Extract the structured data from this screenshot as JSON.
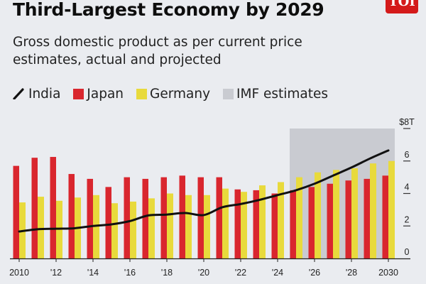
{
  "header": {
    "title": "Third-Largest Economy by 2029",
    "logo_text": "TOI"
  },
  "subtitle_lines": [
    "Gross domestic product as per current price",
    "estimates, actual and projected"
  ],
  "legend": [
    {
      "label": "India",
      "kind": "line",
      "color": "#111111"
    },
    {
      "label": "Japan",
      "kind": "swatch",
      "color": "#d9262e"
    },
    {
      "label": "Germany",
      "kind": "swatch",
      "color": "#e8da3c"
    },
    {
      "label": "IMF estimates",
      "kind": "swatch",
      "color": "#c9cbd1"
    }
  ],
  "chart_data": {
    "type": "bar",
    "title": "Third-Largest Economy by 2029",
    "subtitle": "Gross domestic product as per current price estimates, actual and projected",
    "xlabel": "",
    "ylabel": "",
    "x": [
      2010,
      2011,
      2012,
      2013,
      2014,
      2015,
      2016,
      2017,
      2018,
      2019,
      2020,
      2021,
      2022,
      2023,
      2024,
      2025,
      2026,
      2027,
      2028,
      2029,
      2030
    ],
    "x_tick_labels": [
      {
        "year": 2010,
        "label": "2010"
      },
      {
        "year": 2012,
        "label": "'12"
      },
      {
        "year": 2014,
        "label": "'14"
      },
      {
        "year": 2016,
        "label": "'16"
      },
      {
        "year": 2018,
        "label": "'18"
      },
      {
        "year": 2020,
        "label": "'20"
      },
      {
        "year": 2022,
        "label": "'22"
      },
      {
        "year": 2024,
        "label": "'24"
      },
      {
        "year": 2026,
        "label": "'26"
      },
      {
        "year": 2028,
        "label": "'28"
      },
      {
        "year": 2030,
        "label": "2030"
      }
    ],
    "y_ticks": [
      {
        "value": 0,
        "label": "0"
      },
      {
        "value": 2,
        "label": "2"
      },
      {
        "value": 4,
        "label": "4"
      },
      {
        "value": 6,
        "label": "6"
      },
      {
        "value": 8,
        "label": "$8T"
      }
    ],
    "ylim": [
      0,
      8
    ],
    "y_axis_position": "right",
    "grid": false,
    "legend_position": "top-left",
    "series": [
      {
        "name": "Japan",
        "type": "bar",
        "color": "#d9262e",
        "values": [
          5.7,
          6.2,
          6.25,
          5.2,
          4.9,
          4.4,
          5.0,
          4.9,
          5.0,
          5.1,
          5.0,
          5.0,
          4.25,
          4.2,
          4.0,
          4.2,
          4.4,
          4.6,
          4.8,
          4.9,
          5.1
        ]
      },
      {
        "name": "Germany",
        "type": "bar",
        "color": "#e8da3c",
        "values": [
          3.45,
          3.8,
          3.55,
          3.75,
          3.9,
          3.4,
          3.5,
          3.7,
          4.0,
          3.9,
          3.9,
          4.3,
          4.1,
          4.5,
          4.7,
          5.0,
          5.3,
          5.45,
          5.55,
          5.85,
          6.0
        ]
      },
      {
        "name": "India",
        "type": "line",
        "color": "#111111",
        "values": [
          1.66,
          1.8,
          1.83,
          1.86,
          2.0,
          2.1,
          2.3,
          2.65,
          2.7,
          2.8,
          2.67,
          3.15,
          3.35,
          3.6,
          3.9,
          4.2,
          4.6,
          5.1,
          5.6,
          6.15,
          6.65
        ]
      }
    ],
    "annotations": [
      {
        "type": "shaded-region",
        "label": "IMF estimates",
        "x_start": 2025,
        "x_end": 2030,
        "color": "#c9cbd1"
      }
    ]
  }
}
